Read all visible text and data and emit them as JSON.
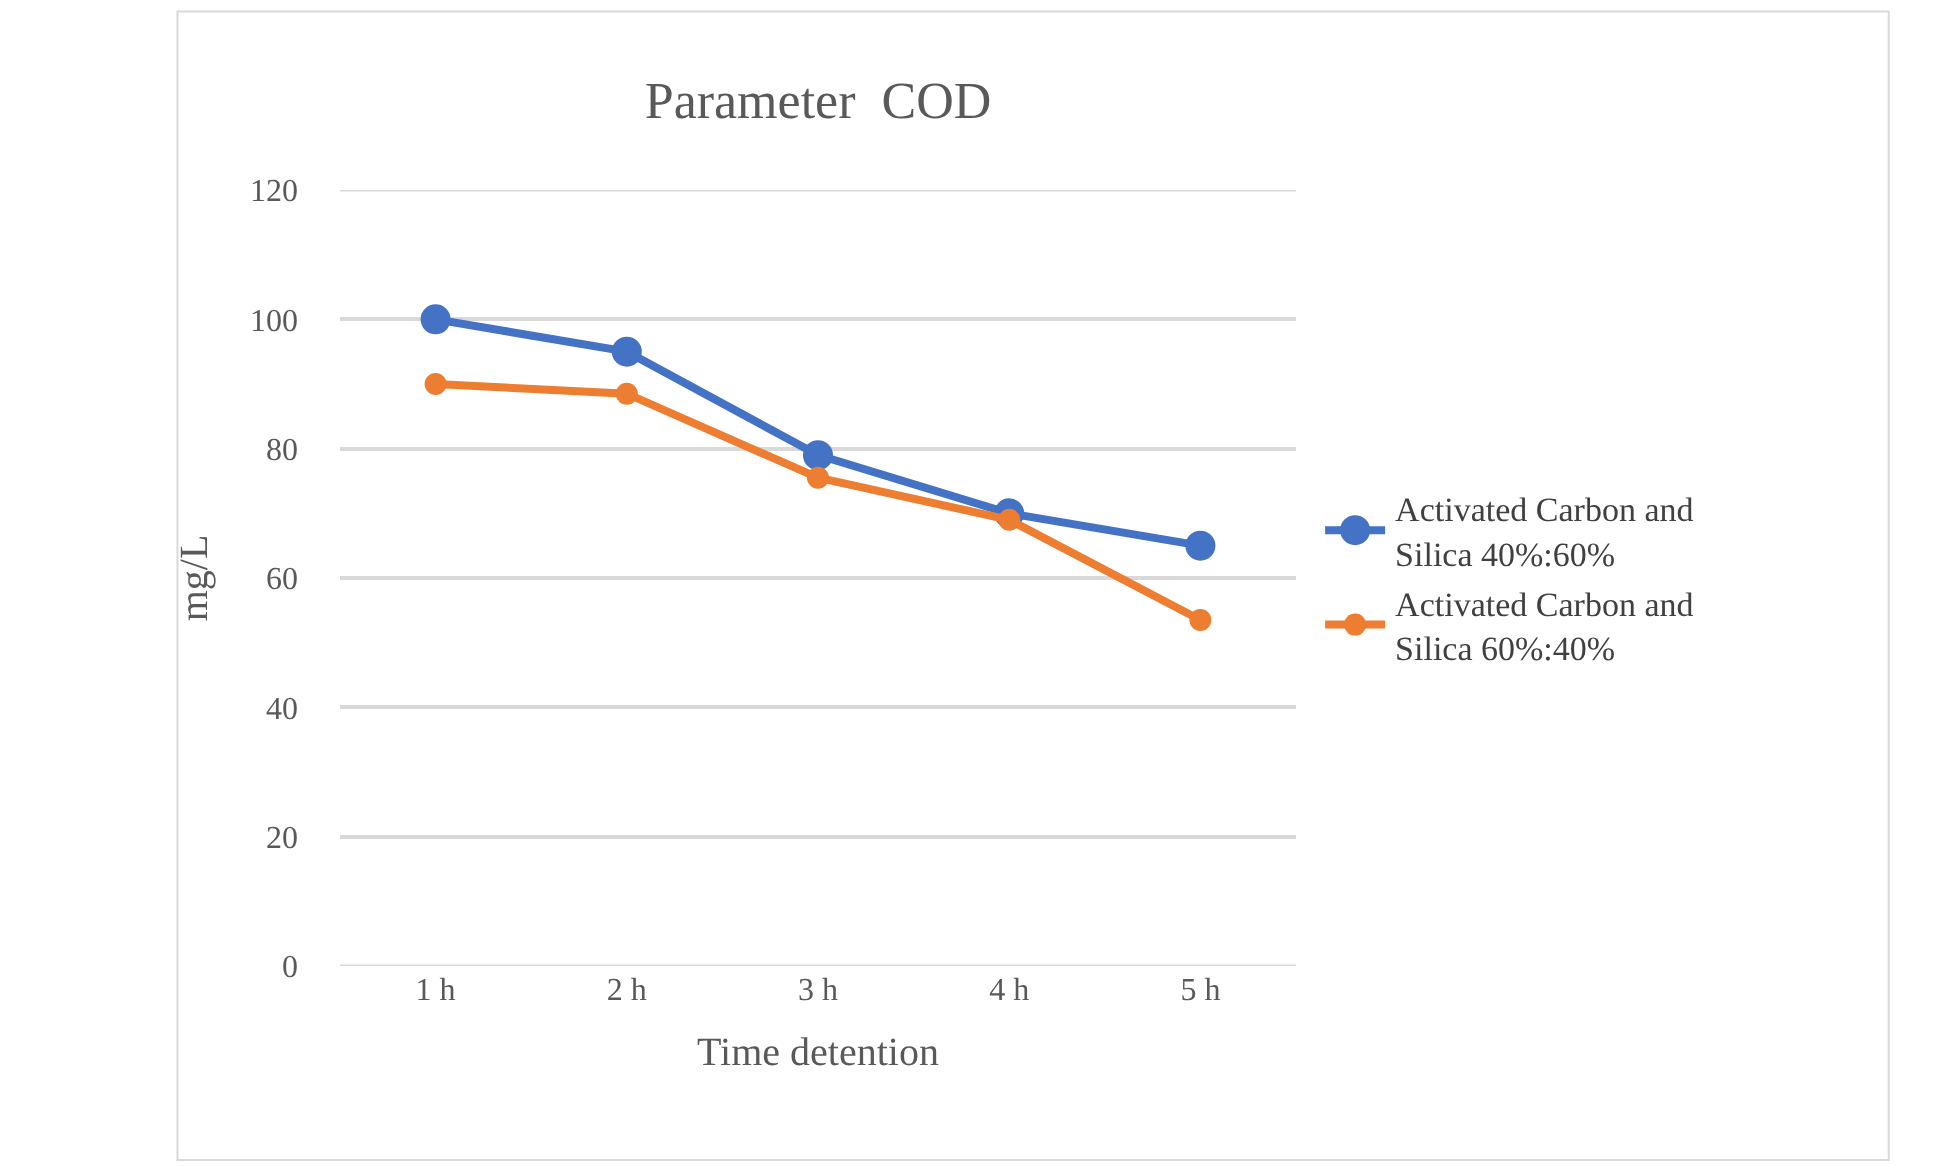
{
  "chart_data": {
    "type": "line",
    "title": "Parameter  COD",
    "xlabel": "Time detention",
    "ylabel": "mg/L",
    "categories": [
      "1 h",
      "2 h",
      "3 h",
      "4 h",
      "5 h"
    ],
    "series": [
      {
        "name": "Activated Carbon and Silica 40%:60%",
        "color": "#4472c4",
        "values": [
          100,
          95,
          79,
          70,
          65
        ]
      },
      {
        "name": "Activated Carbon and Silica 60%:40%",
        "color": "#ed7d31",
        "values": [
          90,
          88.5,
          75.5,
          69,
          53.5
        ]
      }
    ],
    "ylim": [
      0,
      120
    ],
    "yticks": [
      0,
      20,
      40,
      60,
      80,
      100,
      120
    ],
    "grid": "y",
    "legend": "right",
    "marker": "circle",
    "line_style": "solid"
  }
}
